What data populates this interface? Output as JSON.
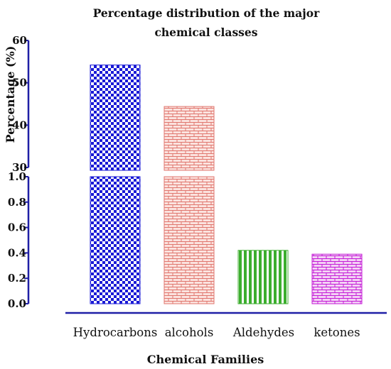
{
  "chart_data": {
    "type": "bar",
    "title_lines": [
      "Percentage distribution of the major",
      "chemical classes"
    ],
    "xlabel": "Chemical Families",
    "ylabel": "Percentage  (%)",
    "categories": [
      "Hydrocarbons",
      "alcohols",
      "Aldehydes",
      "ketones"
    ],
    "values": [
      54.2,
      44.4,
      0.42,
      0.39
    ],
    "y_axis_break": true,
    "y_segments": [
      {
        "range": [
          0,
          1.0
        ],
        "ticks": [
          "0.0",
          "0.2",
          "0.4",
          "0.6",
          "0.8",
          "1.0"
        ]
      },
      {
        "range": [
          30,
          60
        ],
        "ticks": [
          "30",
          "40",
          "50",
          "60"
        ]
      }
    ],
    "grid": false,
    "legend": "none",
    "colors": [
      "#1a1ad6",
      "#e0766e",
      "#3cae2e",
      "#c41bd6"
    ],
    "patterns": [
      "checkerboard",
      "brick",
      "vertical-stripes",
      "brick"
    ]
  }
}
